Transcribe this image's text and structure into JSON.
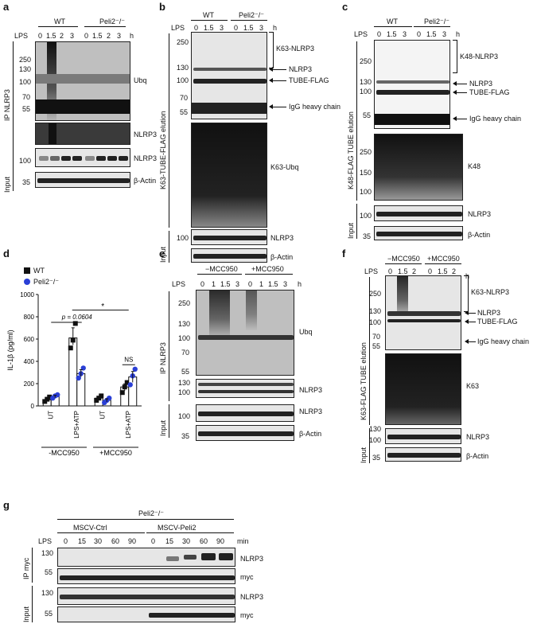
{
  "panels": {
    "a": {
      "label": "a",
      "lps": "LPS",
      "unit": "h",
      "groups": [
        "WT",
        "Peli2⁻/⁻"
      ],
      "times": [
        "0",
        "1.5",
        "2",
        "3",
        "0",
        "1.5",
        "2",
        "3"
      ],
      "ip": "IP NLRP3",
      "input": "Input",
      "mw_top": [
        "250",
        "130",
        "100",
        "70",
        "55"
      ],
      "mw_nlrp3": [
        "100"
      ],
      "mw_actin": [
        "35"
      ],
      "bands": [
        "Ubq",
        "NLRP3",
        "NLRP3",
        "β-Actin"
      ]
    },
    "b": {
      "label": "b",
      "lps": "LPS",
      "unit": "h",
      "groups": [
        "WT",
        "Peli2⁻/⁻"
      ],
      "times": [
        "0",
        "1.5",
        "3",
        "0",
        "1.5",
        "3"
      ],
      "elution": "K63-TUBE-FLAG elution",
      "input": "Input",
      "mw_top": [
        "250",
        "130",
        "100",
        "70",
        "55"
      ],
      "mw_nlrp3": [
        "100"
      ],
      "annot": [
        "K63-NLRP3",
        "NLRP3",
        "TUBE-FLAG",
        "IgG heavy chain",
        "K63-Ubq",
        "NLRP3",
        "β-Actin"
      ]
    },
    "c": {
      "label": "c",
      "lps": "LPS",
      "unit": "h",
      "groups": [
        "WT",
        "Peli2⁻/⁻"
      ],
      "times": [
        "0",
        "1.5",
        "3",
        "0",
        "1.5",
        "3"
      ],
      "elution": "K48-FLAG TUBE elution",
      "input": "Input",
      "mw_top": [
        "250",
        "130",
        "100",
        "55"
      ],
      "mw_mid": [
        "250",
        "150",
        "100"
      ],
      "mw_input": [
        "100",
        "35"
      ],
      "annot": [
        "K48-NLRP3",
        "NLRP3",
        "TUBE-FLAG",
        "IgG heavy chain",
        "K48",
        "NLRP3",
        "β-Actin"
      ]
    },
    "d": {
      "label": "d",
      "ylabel": "IL-1β (pg/ml)",
      "legend": [
        "WT",
        "Peli2⁻/⁻"
      ],
      "pvalue": "p = 0.0604",
      "star": "*",
      "ns": "NS",
      "xcats": [
        "UT",
        "LPS+ATP",
        "UT",
        "LPS+ATP"
      ],
      "groups": [
        "-MCC950",
        "+MCC950"
      ]
    },
    "e": {
      "label": "e",
      "lps": "LPS",
      "unit": "h",
      "groups": [
        "−MCC950",
        "+MCC950"
      ],
      "times": [
        "0",
        "1",
        "1.5",
        "3",
        "0",
        "1",
        "1.5",
        "3"
      ],
      "ip": "IP NLRP3",
      "input": "Input",
      "mw_top": [
        "250",
        "130",
        "100",
        "70",
        "55"
      ],
      "mw_mid": [
        "130",
        "100"
      ],
      "mw_input": [
        "100",
        "35"
      ],
      "annot": [
        "Ubq",
        "NLRP3",
        "NLRP3",
        "β-Actin"
      ]
    },
    "f": {
      "label": "f",
      "lps": "LPS",
      "unit": "h",
      "groups": [
        "−MCC950",
        "+MCC950"
      ],
      "times": [
        "0",
        "1.5",
        "2",
        "0",
        "1.5",
        "2"
      ],
      "elution": "K63-FLAG TUBE elution",
      "input": "Input",
      "mw_top": [
        "250",
        "130",
        "100",
        "70",
        "55"
      ],
      "mw_input": [
        "130",
        "100",
        "35"
      ],
      "annot": [
        "K63-NLRP3",
        "NLRP3",
        "TUBE-FLAG",
        "IgG heavy chain",
        "K63",
        "NLRP3",
        "β-Actin"
      ]
    },
    "g": {
      "label": "g",
      "genotype": "Peli2⁻/⁻",
      "groups": [
        "MSCV-Ctrl",
        "MSCV-Peli2"
      ],
      "lps": "LPS",
      "unit": "min",
      "times": [
        "0",
        "15",
        "30",
        "60",
        "90",
        "0",
        "15",
        "30",
        "60",
        "90"
      ],
      "ip": "IP myc",
      "input": "Input",
      "mw": [
        "130",
        "55",
        "130",
        "55"
      ],
      "annot": [
        "NLRP3",
        "myc",
        "NLRP3",
        "myc"
      ]
    }
  },
  "chart_data": {
    "type": "bar",
    "categories": [
      "UT (-MCC950)",
      "LPS+ATP (-MCC950)",
      "UT (+MCC950)",
      "LPS+ATP (+MCC950)"
    ],
    "series": [
      {
        "name": "WT",
        "values": [
          55,
          610,
          70,
          170
        ]
      },
      {
        "name": "Peli2⁻/⁻",
        "values": [
          85,
          290,
          50,
          260
        ]
      }
    ],
    "points": {
      "WT": [
        [
          40,
          60,
          80
        ],
        [
          520,
          590,
          740
        ],
        [
          50,
          70,
          90
        ],
        [
          120,
          170,
          210
        ]
      ],
      "Peli2⁻/⁻": [
        [
          70,
          90,
          100
        ],
        [
          250,
          290,
          340
        ],
        [
          30,
          50,
          70
        ],
        [
          190,
          270,
          330
        ]
      ]
    },
    "ylabel": "IL-1β (pg/ml)",
    "yticks": [
      0,
      200,
      400,
      600,
      800,
      1000
    ],
    "ylim": [
      0,
      1000
    ],
    "colors": {
      "WT": "#111111",
      "Peli2": "#2a3fd6"
    }
  }
}
